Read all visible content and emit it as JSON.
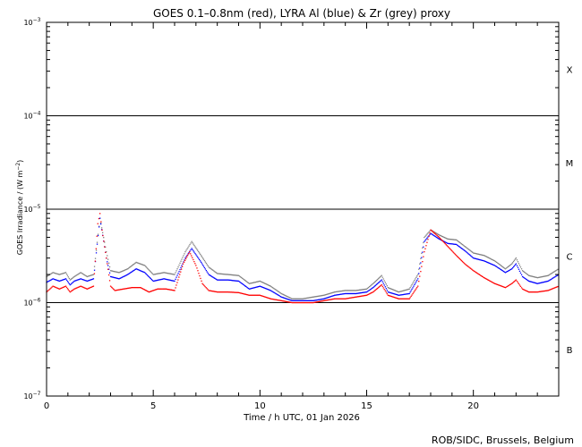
{
  "chart_data": {
    "type": "scatter",
    "title": "GOES 0.1–0.8nm (red), LYRA Al (blue) & Zr (grey) proxy",
    "xlabel": "Time / h UTC, 01 Jan 2026",
    "ylabel_main": "GOES Irradiance / (W m",
    "ylabel_exp": "−2",
    "ylabel_close": ")",
    "credit": "ROB/SIDC, Brussels, Belgium",
    "xlim": [
      0,
      24
    ],
    "ylim_log10": [
      -7,
      -3
    ],
    "y_scale": "log",
    "x_ticks": [
      {
        "v": 0,
        "label": "0"
      },
      {
        "v": 5,
        "label": "5"
      },
      {
        "v": 10,
        "label": "10"
      },
      {
        "v": 15,
        "label": "15"
      },
      {
        "v": 20,
        "label": "20"
      }
    ],
    "y_ticks": [
      {
        "exp": -3,
        "base": "10",
        "sup": "−3"
      },
      {
        "exp": -4,
        "base": "10",
        "sup": "−4"
      },
      {
        "exp": -5,
        "base": "10",
        "sup": "−5"
      },
      {
        "exp": -6,
        "base": "10",
        "sup": "−6"
      },
      {
        "exp": -7,
        "base": "10",
        "sup": "−7"
      }
    ],
    "flare_classes": [
      {
        "label": "X",
        "log_center": -3.5
      },
      {
        "label": "M",
        "log_center": -4.5
      },
      {
        "label": "C",
        "log_center": -5.5
      },
      {
        "label": "B",
        "log_center": -6.5
      }
    ],
    "threshold_lines_log10": [
      -4,
      -5,
      -6
    ],
    "colors": {
      "goes": "#ff0000",
      "lyra_al": "#0000ff",
      "lyra_zr": "#808080"
    },
    "series": [
      {
        "name": "GOES 0.1–0.8nm",
        "color": "red",
        "points": [
          [
            0,
            1.3e-06
          ],
          [
            0.3,
            1.5e-06
          ],
          [
            0.6,
            1.4e-06
          ],
          [
            0.9,
            1.5e-06
          ],
          [
            1.1,
            1.3e-06
          ],
          [
            1.3,
            1.4e-06
          ],
          [
            1.6,
            1.5e-06
          ],
          [
            1.9,
            1.4e-06
          ],
          [
            2.2,
            1.5e-06
          ],
          [
            2.4,
            7e-06
          ],
          [
            2.5,
            9e-06
          ],
          [
            2.6,
            6e-06
          ],
          [
            2.8,
            3e-06
          ],
          [
            3.0,
            1.5e-06
          ],
          [
            3.2,
            1.35e-06
          ],
          [
            3.6,
            1.4e-06
          ],
          [
            4.0,
            1.45e-06
          ],
          [
            4.4,
            1.45e-06
          ],
          [
            4.8,
            1.3e-06
          ],
          [
            5.2,
            1.4e-06
          ],
          [
            5.6,
            1.4e-06
          ],
          [
            6.0,
            1.35e-06
          ],
          [
            6.4,
            2.6e-06
          ],
          [
            6.7,
            3.5e-06
          ],
          [
            7.0,
            2.5e-06
          ],
          [
            7.3,
            1.6e-06
          ],
          [
            7.6,
            1.35e-06
          ],
          [
            8.0,
            1.3e-06
          ],
          [
            8.5,
            1.3e-06
          ],
          [
            9.0,
            1.28e-06
          ],
          [
            9.5,
            1.2e-06
          ],
          [
            10.0,
            1.2e-06
          ],
          [
            10.5,
            1.1e-06
          ],
          [
            11.0,
            1.05e-06
          ],
          [
            11.5,
            1e-06
          ],
          [
            12.0,
            1e-06
          ],
          [
            12.5,
            1e-06
          ],
          [
            13.0,
            1.05e-06
          ],
          [
            13.5,
            1.1e-06
          ],
          [
            14.0,
            1.1e-06
          ],
          [
            14.5,
            1.15e-06
          ],
          [
            15.0,
            1.2e-06
          ],
          [
            15.3,
            1.3e-06
          ],
          [
            15.7,
            1.55e-06
          ],
          [
            16.0,
            1.2e-06
          ],
          [
            16.5,
            1.1e-06
          ],
          [
            17.0,
            1.1e-06
          ],
          [
            17.4,
            1.5e-06
          ],
          [
            17.7,
            3.5e-06
          ],
          [
            18.0,
            6e-06
          ],
          [
            18.4,
            5e-06
          ],
          [
            18.8,
            4e-06
          ],
          [
            19.2,
            3.2e-06
          ],
          [
            19.6,
            2.6e-06
          ],
          [
            20.0,
            2.2e-06
          ],
          [
            20.5,
            1.85e-06
          ],
          [
            21.0,
            1.6e-06
          ],
          [
            21.5,
            1.45e-06
          ],
          [
            21.8,
            1.6e-06
          ],
          [
            22.0,
            1.75e-06
          ],
          [
            22.3,
            1.4e-06
          ],
          [
            22.6,
            1.3e-06
          ],
          [
            23.0,
            1.3e-06
          ],
          [
            23.5,
            1.35e-06
          ],
          [
            24.0,
            1.5e-06
          ]
        ]
      },
      {
        "name": "LYRA Al",
        "color": "blue",
        "points": [
          [
            0,
            1.65e-06
          ],
          [
            0.3,
            1.8e-06
          ],
          [
            0.6,
            1.7e-06
          ],
          [
            0.9,
            1.8e-06
          ],
          [
            1.1,
            1.55e-06
          ],
          [
            1.3,
            1.7e-06
          ],
          [
            1.6,
            1.8e-06
          ],
          [
            1.9,
            1.7e-06
          ],
          [
            2.2,
            1.8e-06
          ],
          [
            2.5,
            8e-06
          ],
          [
            2.8,
            3e-06
          ],
          [
            3.0,
            1.9e-06
          ],
          [
            3.4,
            1.8e-06
          ],
          [
            3.8,
            2e-06
          ],
          [
            4.2,
            2.3e-06
          ],
          [
            4.6,
            2.1e-06
          ],
          [
            5.0,
            1.7e-06
          ],
          [
            5.5,
            1.8e-06
          ],
          [
            6.0,
            1.7e-06
          ],
          [
            6.5,
            3e-06
          ],
          [
            6.8,
            3.8e-06
          ],
          [
            7.2,
            2.8e-06
          ],
          [
            7.6,
            2e-06
          ],
          [
            8.0,
            1.75e-06
          ],
          [
            8.5,
            1.75e-06
          ],
          [
            9.0,
            1.7e-06
          ],
          [
            9.5,
            1.4e-06
          ],
          [
            10.0,
            1.5e-06
          ],
          [
            10.5,
            1.35e-06
          ],
          [
            11.0,
            1.15e-06
          ],
          [
            11.5,
            1.05e-06
          ],
          [
            12.0,
            1.05e-06
          ],
          [
            12.5,
            1.05e-06
          ],
          [
            13.0,
            1.1e-06
          ],
          [
            13.5,
            1.2e-06
          ],
          [
            14.0,
            1.25e-06
          ],
          [
            14.5,
            1.25e-06
          ],
          [
            15.0,
            1.3e-06
          ],
          [
            15.3,
            1.45e-06
          ],
          [
            15.7,
            1.75e-06
          ],
          [
            16.0,
            1.3e-06
          ],
          [
            16.5,
            1.2e-06
          ],
          [
            17.0,
            1.25e-06
          ],
          [
            17.4,
            1.8e-06
          ],
          [
            17.7,
            4.5e-06
          ],
          [
            18.0,
            5.5e-06
          ],
          [
            18.4,
            4.8e-06
          ],
          [
            18.8,
            4.3e-06
          ],
          [
            19.2,
            4.2e-06
          ],
          [
            19.6,
            3.6e-06
          ],
          [
            20.0,
            3e-06
          ],
          [
            20.5,
            2.8e-06
          ],
          [
            21.0,
            2.5e-06
          ],
          [
            21.5,
            2.1e-06
          ],
          [
            21.8,
            2.3e-06
          ],
          [
            22.0,
            2.6e-06
          ],
          [
            22.3,
            1.9e-06
          ],
          [
            22.6,
            1.7e-06
          ],
          [
            23.0,
            1.6e-06
          ],
          [
            23.5,
            1.7e-06
          ],
          [
            24.0,
            2e-06
          ]
        ]
      },
      {
        "name": "LYRA Zr",
        "color": "grey",
        "points": [
          [
            0,
            1.9e-06
          ],
          [
            0.3,
            2.1e-06
          ],
          [
            0.6,
            2e-06
          ],
          [
            0.9,
            2.1e-06
          ],
          [
            1.1,
            1.75e-06
          ],
          [
            1.3,
            1.9e-06
          ],
          [
            1.6,
            2.1e-06
          ],
          [
            1.9,
            1.9e-06
          ],
          [
            2.2,
            2e-06
          ],
          [
            2.5,
            8e-06
          ],
          [
            2.8,
            3.5e-06
          ],
          [
            3.0,
            2.2e-06
          ],
          [
            3.4,
            2.1e-06
          ],
          [
            3.8,
            2.3e-06
          ],
          [
            4.2,
            2.7e-06
          ],
          [
            4.6,
            2.5e-06
          ],
          [
            5.0,
            2e-06
          ],
          [
            5.5,
            2.1e-06
          ],
          [
            6.0,
            2e-06
          ],
          [
            6.5,
            3.5e-06
          ],
          [
            6.8,
            4.5e-06
          ],
          [
            7.2,
            3.3e-06
          ],
          [
            7.6,
            2.4e-06
          ],
          [
            8.0,
            2.05e-06
          ],
          [
            8.5,
            2e-06
          ],
          [
            9.0,
            1.95e-06
          ],
          [
            9.5,
            1.6e-06
          ],
          [
            10.0,
            1.7e-06
          ],
          [
            10.5,
            1.5e-06
          ],
          [
            11.0,
            1.25e-06
          ],
          [
            11.5,
            1.1e-06
          ],
          [
            12.0,
            1.1e-06
          ],
          [
            12.5,
            1.15e-06
          ],
          [
            13.0,
            1.2e-06
          ],
          [
            13.5,
            1.3e-06
          ],
          [
            14.0,
            1.35e-06
          ],
          [
            14.5,
            1.35e-06
          ],
          [
            15.0,
            1.4e-06
          ],
          [
            15.3,
            1.6e-06
          ],
          [
            15.7,
            1.95e-06
          ],
          [
            16.0,
            1.45e-06
          ],
          [
            16.5,
            1.3e-06
          ],
          [
            17.0,
            1.4e-06
          ],
          [
            17.4,
            2e-06
          ],
          [
            17.7,
            5e-06
          ],
          [
            18.0,
            6e-06
          ],
          [
            18.4,
            5.3e-06
          ],
          [
            18.8,
            4.8e-06
          ],
          [
            19.2,
            4.7e-06
          ],
          [
            19.6,
            4e-06
          ],
          [
            20.0,
            3.4e-06
          ],
          [
            20.5,
            3.2e-06
          ],
          [
            21.0,
            2.8e-06
          ],
          [
            21.5,
            2.3e-06
          ],
          [
            21.8,
            2.6e-06
          ],
          [
            22.0,
            3e-06
          ],
          [
            22.3,
            2.2e-06
          ],
          [
            22.6,
            1.95e-06
          ],
          [
            23.0,
            1.85e-06
          ],
          [
            23.5,
            1.95e-06
          ],
          [
            24.0,
            2.3e-06
          ]
        ]
      }
    ]
  }
}
